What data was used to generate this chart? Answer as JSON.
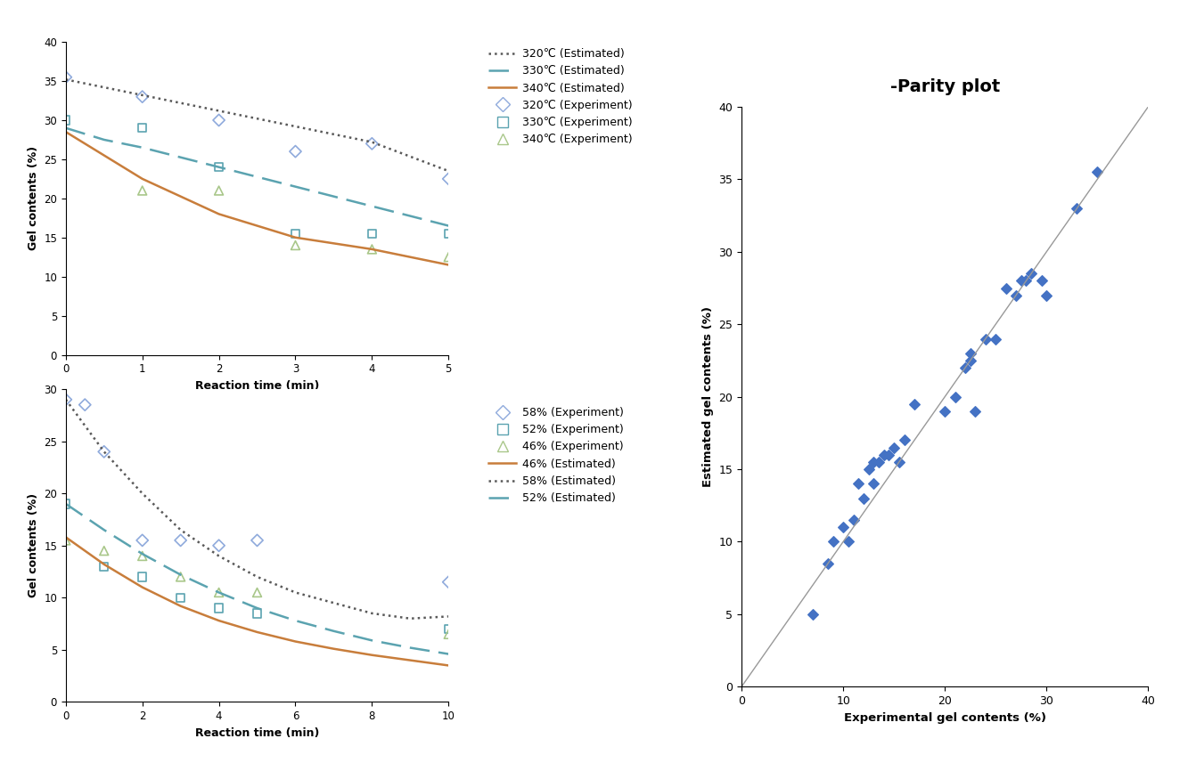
{
  "title_parity": "-Parity plot",
  "top_plot": {
    "xlabel": "Reaction time (min)",
    "ylabel": "Gel contents (%)",
    "xlim": [
      0,
      5
    ],
    "ylim": [
      0,
      40
    ],
    "xticks": [
      0,
      1,
      2,
      3,
      4,
      5
    ],
    "yticks": [
      0,
      5,
      10,
      15,
      20,
      25,
      30,
      35,
      40
    ],
    "line_320_x": [
      0,
      0.5,
      1,
      2,
      3,
      4,
      5
    ],
    "line_320_y": [
      35.2,
      34.2,
      33.2,
      31.2,
      29.2,
      27.2,
      23.5
    ],
    "line_330_x": [
      0,
      0.5,
      1,
      2,
      3,
      4,
      5
    ],
    "line_330_y": [
      29.0,
      27.5,
      26.5,
      24.0,
      21.5,
      19.0,
      16.5
    ],
    "line_340_x": [
      0,
      0.5,
      1,
      2,
      3,
      4,
      5
    ],
    "line_340_y": [
      28.5,
      25.5,
      22.5,
      18.0,
      15.0,
      13.5,
      11.5
    ],
    "exp_320_x": [
      0,
      1,
      2,
      3,
      4,
      5
    ],
    "exp_320_y": [
      35.5,
      33.0,
      30.0,
      26.0,
      27.0,
      22.5
    ],
    "exp_330_x": [
      0,
      1,
      2,
      3,
      4,
      5
    ],
    "exp_330_y": [
      30.0,
      29.0,
      24.0,
      15.5,
      15.5,
      15.5
    ],
    "exp_340_x": [
      1,
      2,
      3,
      4,
      5
    ],
    "exp_340_y": [
      21.0,
      21.0,
      14.0,
      13.5,
      12.5
    ],
    "legend_labels_line": [
      "320℃ (Estimated)",
      "330℃ (Estimated)",
      "340℃ (Estimated)"
    ],
    "legend_labels_exp": [
      "320℃ (Experiment)",
      "330℃ (Experiment)",
      "340℃ (Experiment)"
    ]
  },
  "bottom_plot": {
    "xlabel": "Reaction time (min)",
    "ylabel": "Gel contents (%)",
    "xlim": [
      0,
      10
    ],
    "ylim": [
      0,
      30
    ],
    "xticks": [
      0,
      2,
      4,
      6,
      8,
      10
    ],
    "yticks": [
      0,
      5,
      10,
      15,
      20,
      25,
      30
    ],
    "line_46_x": [
      0,
      1,
      2,
      3,
      4,
      5,
      6,
      7,
      8,
      9,
      10
    ],
    "line_46_y": [
      15.8,
      13.2,
      11.0,
      9.2,
      7.8,
      6.7,
      5.8,
      5.1,
      4.5,
      4.0,
      3.5
    ],
    "line_52_x": [
      0,
      1,
      2,
      3,
      4,
      5,
      6,
      7,
      8,
      9,
      10
    ],
    "line_52_y": [
      19.0,
      16.5,
      14.2,
      12.2,
      10.5,
      9.0,
      7.8,
      6.8,
      5.9,
      5.2,
      4.6
    ],
    "line_58_x": [
      0,
      1,
      2,
      3,
      4,
      5,
      6,
      7,
      8,
      9,
      10
    ],
    "line_58_y": [
      29.0,
      24.0,
      20.0,
      16.5,
      14.0,
      12.0,
      10.5,
      9.5,
      8.5,
      8.0,
      8.2
    ],
    "exp_58_x": [
      0,
      0.5,
      1,
      2,
      3,
      4,
      5,
      10
    ],
    "exp_58_y": [
      29.0,
      28.5,
      24.0,
      15.5,
      15.5,
      15.0,
      15.5,
      11.5
    ],
    "exp_52_x": [
      0,
      1,
      2,
      3,
      4,
      5,
      10
    ],
    "exp_52_y": [
      19.0,
      13.0,
      12.0,
      10.0,
      9.0,
      8.5,
      7.0
    ],
    "exp_46_x": [
      0,
      1,
      2,
      3,
      4,
      5,
      10
    ],
    "exp_46_y": [
      15.5,
      14.5,
      14.0,
      12.0,
      10.5,
      10.5,
      6.5
    ],
    "legend_labels_exp": [
      "58% (Experiment)",
      "52% (Experiment)",
      "46% (Experiment)"
    ],
    "legend_labels_line": [
      "46% (Estimated)",
      "58% (Estimated)",
      "52% (Estimated)"
    ]
  },
  "parity_exp": [
    7.0,
    8.5,
    9.0,
    10.0,
    10.5,
    11.0,
    11.5,
    12.0,
    12.5,
    13.0,
    13.0,
    13.5,
    14.0,
    14.5,
    15.0,
    15.5,
    16.0,
    17.0,
    20.0,
    21.0,
    22.0,
    22.5,
    22.5,
    23.0,
    24.0,
    25.0,
    26.0,
    27.0,
    27.5,
    28.0,
    28.5,
    29.5,
    30.0,
    33.0,
    35.0
  ],
  "parity_est": [
    5.0,
    8.5,
    10.0,
    11.0,
    10.0,
    11.5,
    14.0,
    13.0,
    15.0,
    14.0,
    15.5,
    15.5,
    16.0,
    16.0,
    16.5,
    15.5,
    17.0,
    19.5,
    19.0,
    20.0,
    22.0,
    23.0,
    22.5,
    19.0,
    24.0,
    24.0,
    27.5,
    27.0,
    28.0,
    28.0,
    28.5,
    28.0,
    27.0,
    33.0,
    35.5
  ],
  "colors": {
    "320_line": "#595959",
    "330_line": "#5BA3B0",
    "340_line": "#C87D3B",
    "46_line": "#C87D3B",
    "52_line": "#5BA3B0",
    "58_line": "#595959",
    "exp_320": "#8FAADC",
    "exp_330": "#5BA3B0",
    "exp_340": "#A9C78A",
    "exp_58": "#8FAADC",
    "exp_52": "#5BA3B0",
    "exp_46": "#A9C78A",
    "parity_dot": "#4472C4",
    "parity_line": "#999999"
  }
}
